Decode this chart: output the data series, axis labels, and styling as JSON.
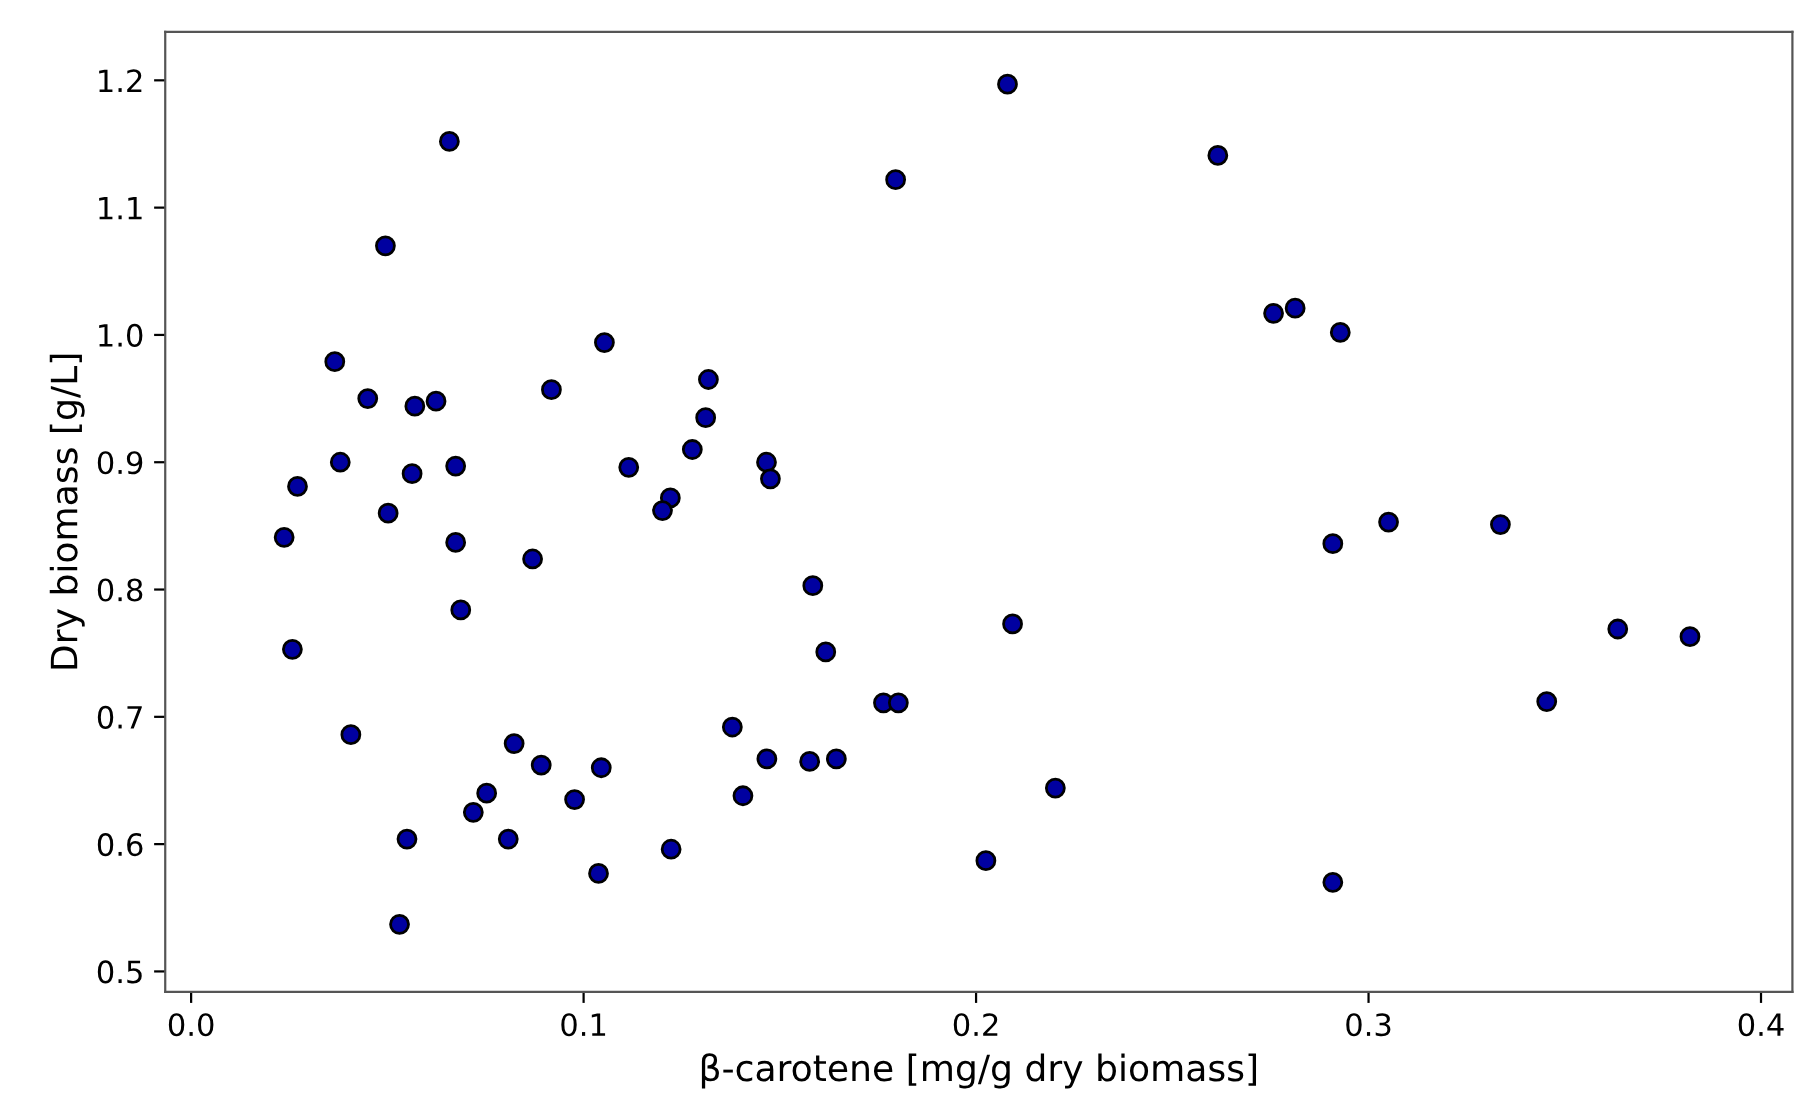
{
  "chart_data": {
    "type": "scatter",
    "xlabel": "β-carotene [mg/g dry biomass]",
    "ylabel": "Dry biomass [g/L]",
    "xlim": [
      -0.0066,
      0.408
    ],
    "ylim": [
      0.484,
      1.238
    ],
    "xticks": [
      {
        "value": 0,
        "label": "0.0"
      },
      0.1,
      0.2,
      0.3,
      0.4
    ],
    "yticks": [
      0.5,
      0.6,
      0.7,
      0.8,
      0.9,
      {
        "value": 1.0,
        "label": "1.0"
      },
      1.1,
      1.2
    ],
    "grid": false,
    "marker": "circle",
    "series": [
      {
        "color": "#0000a0",
        "x": [
          0.0658,
          0.0495,
          0.0366,
          0.1053,
          0.045,
          0.057,
          0.0624,
          0.0918,
          0.1318,
          0.1311,
          0.1277,
          0.038,
          0.0563,
          0.0674,
          0.1115,
          0.0271,
          0.1221,
          0.1201,
          0.0502,
          0.0237,
          0.0674,
          0.087,
          0.0687,
          0.0258,
          0.0407,
          0.1379,
          0.0823,
          0.0892,
          0.1045,
          0.0753,
          0.0719,
          0.0977,
          0.1406,
          0.055,
          0.0808,
          0.1223,
          0.1038,
          0.0531,
          0.208,
          0.2616,
          0.1795,
          0.2758,
          0.2813,
          0.1466,
          0.1476,
          0.1584,
          0.2093,
          0.1617,
          0.1764,
          0.1802,
          0.1467,
          0.1576,
          0.1644,
          0.2202,
          0.2025,
          0.2928,
          0.2909,
          0.3051,
          0.3336,
          0.3454,
          0.3635,
          0.3819,
          0.2909
        ],
        "values": [
          1.152,
          1.07,
          0.979,
          0.994,
          0.95,
          0.944,
          0.948,
          0.957,
          0.965,
          0.935,
          0.91,
          0.9,
          0.891,
          0.897,
          0.896,
          0.881,
          0.872,
          0.862,
          0.86,
          0.841,
          0.837,
          0.824,
          0.784,
          0.753,
          0.686,
          0.692,
          0.679,
          0.662,
          0.66,
          0.64,
          0.625,
          0.635,
          0.638,
          0.604,
          0.604,
          0.596,
          0.577,
          0.537,
          1.197,
          1.141,
          1.122,
          1.017,
          1.021,
          0.9,
          0.887,
          0.803,
          0.773,
          0.751,
          0.711,
          0.711,
          0.667,
          0.665,
          0.667,
          0.644,
          0.587,
          1.002,
          0.836,
          0.853,
          0.851,
          0.712,
          0.769,
          0.763,
          0.57
        ]
      }
    ]
  }
}
